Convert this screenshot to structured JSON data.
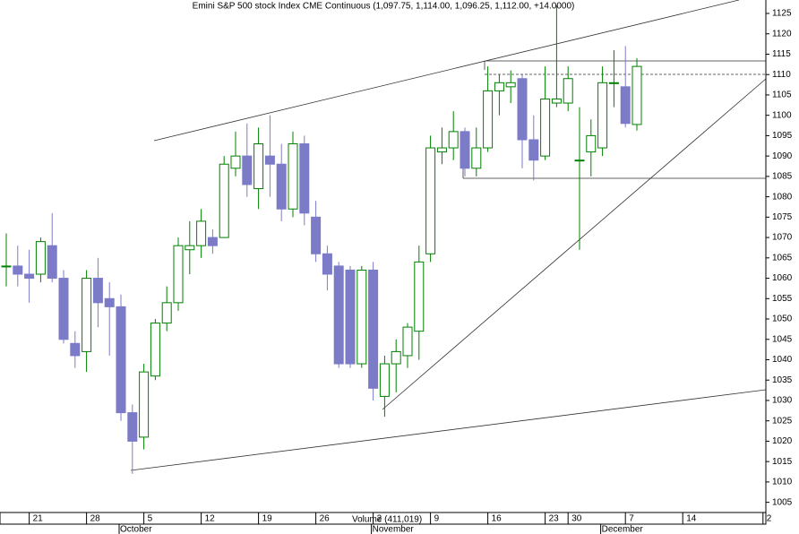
{
  "chart_data": {
    "type": "candlestick",
    "title": "Emini S&P 500 stock Index CME Continuous (1,097.75, 1,114.00, 1,096.25, 1,112.00, +14.0000)",
    "volume_label": "Volume (411,019)",
    "categories": [
      null,
      null,
      "21",
      null,
      null,
      null,
      null,
      "28",
      null,
      null,
      null,
      null,
      "5",
      null,
      null,
      null,
      null,
      "12",
      null,
      null,
      null,
      null,
      "19",
      null,
      null,
      null,
      null,
      "26",
      null,
      null,
      null,
      null,
      "2",
      null,
      null,
      null,
      null,
      "9",
      null,
      null,
      null,
      null,
      "16",
      null,
      null,
      null,
      null,
      "23",
      null,
      "30",
      null,
      null,
      null,
      null,
      "7",
      null,
      null,
      null,
      null,
      "14",
      null,
      null,
      null,
      null,
      null,
      null,
      "2"
    ],
    "month_labels": [
      null,
      null,
      null,
      null,
      null,
      null,
      null,
      null,
      null,
      null,
      "October",
      null,
      null,
      null,
      null,
      null,
      null,
      null,
      null,
      null,
      null,
      null,
      null,
      null,
      null,
      null,
      null,
      null,
      null,
      null,
      null,
      null,
      "November",
      null,
      null,
      null,
      null,
      null,
      null,
      null,
      null,
      null,
      null,
      null,
      null,
      null,
      null,
      null,
      null,
      null,
      null,
      null,
      "December",
      null,
      null,
      null,
      null,
      null,
      null,
      null,
      null,
      null,
      null,
      null,
      null,
      null,
      null
    ],
    "open": [
      1063,
      1063,
      1061,
      1061,
      1068,
      1060,
      1044,
      1042,
      1060,
      1055,
      1053,
      1027,
      1021,
      1036,
      1049,
      1054,
      1067,
      1068,
      1070,
      1070,
      1087,
      1090,
      1082,
      1090,
      1088,
      1077,
      1093,
      1075,
      1066,
      1063,
      1062,
      1039,
      1062,
      1031,
      1039,
      1041,
      1047,
      1066,
      1091,
      1092,
      1096,
      1087,
      1092,
      1106,
      1107,
      1109,
      1094,
      1090,
      1103,
      1103,
      1089,
      1091,
      1092,
      1108,
      1107,
      1097.75,
      null,
      null,
      null,
      null,
      null,
      null,
      null,
      null,
      null,
      null,
      null
    ],
    "high": [
      1071,
      1068,
      1067,
      1070,
      1076,
      1062,
      1047,
      1062,
      1065,
      1059,
      1056,
      1029,
      1039,
      1050,
      1058,
      1070,
      1074,
      1077,
      1072,
      1090,
      1096,
      1098,
      1097,
      1100,
      1093,
      1096,
      1095,
      1079,
      1068,
      1064,
      1063,
      1063,
      1064,
      1041,
      1045,
      1049,
      1068,
      1095,
      1097,
      1101,
      1097,
      1097,
      1112,
      1110,
      1111,
      1110,
      1100,
      1112,
      1127,
      1112,
      1102,
      1099,
      1112,
      1116,
      1117,
      1114,
      null,
      null,
      null,
      null,
      null,
      null,
      null,
      null,
      null,
      null,
      null
    ],
    "low": [
      1058,
      1058,
      1054,
      1059,
      1059,
      1044,
      1038,
      1037,
      1048,
      1041,
      1025,
      1012,
      1018,
      1035,
      1047,
      1052,
      1061,
      1065,
      1066,
      1070,
      1085,
      1080,
      1077,
      1080,
      1074,
      1075,
      1073,
      1064,
      1057,
      1038,
      1038,
      1038,
      1030,
      1026,
      1032,
      1038,
      1040,
      1064,
      1088,
      1089,
      1085,
      1085,
      1091,
      1100,
      1103,
      1087,
      1084,
      1089,
      1102,
      1101,
      1067,
      1085,
      1090,
      1102,
      1097,
      1096.25,
      null,
      null,
      null,
      null,
      null,
      null,
      null,
      null,
      null,
      null,
      null
    ],
    "close": [
      1063,
      1061,
      1060,
      1069,
      1060,
      1045,
      1041,
      1060,
      1054,
      1053,
      1027,
      1020,
      1037,
      1049,
      1054,
      1068,
      1068,
      1074,
      1068,
      1088,
      1090,
      1083,
      1093,
      1088,
      1077,
      1093,
      1076,
      1066,
      1061,
      1039,
      1039,
      1062,
      1033,
      1039,
      1042,
      1048,
      1064,
      1092,
      1092,
      1096,
      1087,
      1092,
      1106,
      1108,
      1108,
      1094,
      1089,
      1104,
      1104,
      1109,
      1089,
      1095,
      1108,
      1108,
      1098,
      1112,
      null,
      null,
      null,
      null,
      null,
      null,
      null,
      null,
      null,
      null,
      null
    ],
    "up_color": "#008000",
    "down_color": "#7b7bc8",
    "ylim": [
      1002.5,
      1128.3
    ],
    "yticks": [
      1005,
      1010,
      1015,
      1020,
      1025,
      1030,
      1035,
      1040,
      1045,
      1050,
      1055,
      1060,
      1065,
      1070,
      1075,
      1080,
      1085,
      1090,
      1095,
      1100,
      1105,
      1110,
      1115,
      1120,
      1125
    ]
  }
}
